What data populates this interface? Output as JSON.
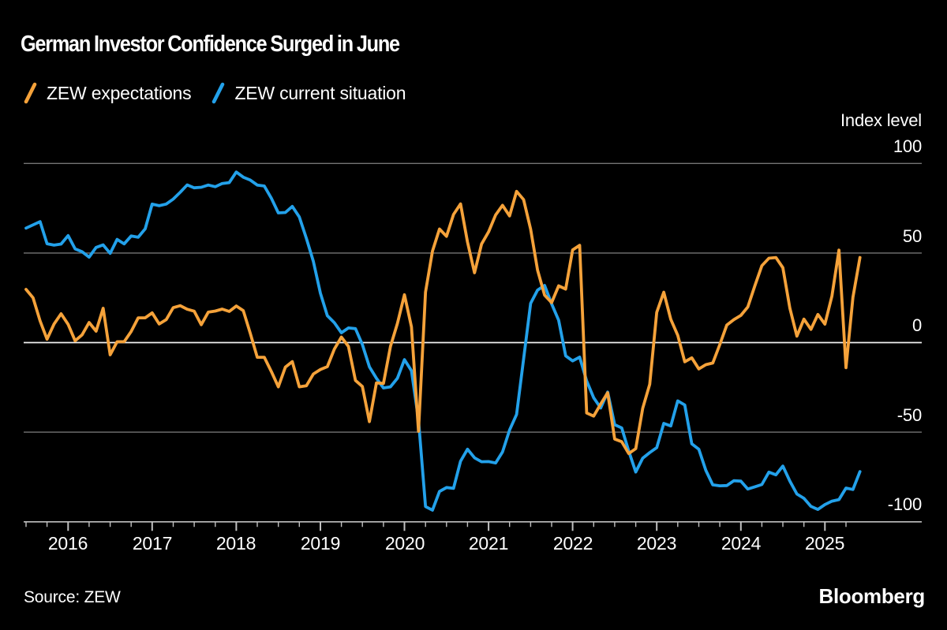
{
  "page": {
    "background": "#000000",
    "text_color": "#ffffff",
    "gridline_color": "#757575",
    "zero_line_color": "#f2f2f2",
    "axis_color": "#c0c0c0"
  },
  "header": {
    "title": "German Investor Confidence Surged in June"
  },
  "legend": {
    "items": [
      {
        "label": "ZEW expectations",
        "color": "#F5A23A"
      },
      {
        "label": "ZEW current situation",
        "color": "#23A1EA"
      }
    ]
  },
  "y_axis": {
    "unit_label": "Index level",
    "ticks": [
      "100",
      "50",
      "0",
      "-50",
      "-100"
    ]
  },
  "x_axis": {
    "years": [
      "2016",
      "2017",
      "2018",
      "2019",
      "2020",
      "2021",
      "2022",
      "2023",
      "2024",
      "2025"
    ]
  },
  "footer": {
    "source": "Source:  ZEW",
    "brand": "Bloomberg"
  },
  "chart_data": {
    "type": "line",
    "title": "German Investor Confidence Surged in June",
    "ylabel": "Index level",
    "ylim": [
      -100,
      100
    ],
    "y_gridlines": [
      100,
      50,
      0,
      -50,
      -100
    ],
    "grid": true,
    "legend_position": "top-left",
    "x_range": {
      "start": "2015-07",
      "end": "2025-06",
      "frequency": "monthly"
    },
    "x_tick_years": [
      2016,
      2017,
      2018,
      2019,
      2020,
      2021,
      2022,
      2023,
      2024,
      2025
    ],
    "series": [
      {
        "name": "ZEW expectations",
        "color": "#F5A23A",
        "values": [
          29.7,
          25.0,
          12.1,
          1.9,
          10.4,
          16.1,
          10.2,
          1.0,
          4.3,
          11.2,
          6.4,
          19.2,
          -6.8,
          0.5,
          0.5,
          6.2,
          13.8,
          13.8,
          16.6,
          10.4,
          12.8,
          19.5,
          20.6,
          18.6,
          17.5,
          10.0,
          17.0,
          17.6,
          18.7,
          17.4,
          20.4,
          17.8,
          5.1,
          -8.2,
          -8.2,
          -16.1,
          -24.7,
          -13.7,
          -10.6,
          -24.7,
          -24.1,
          -17.5,
          -15.0,
          -13.4,
          -3.6,
          3.1,
          -2.1,
          -21.1,
          -24.5,
          -44.1,
          -22.5,
          -22.8,
          -2.1,
          10.7,
          26.7,
          8.7,
          -49.5,
          28.2,
          51.0,
          63.4,
          59.3,
          71.5,
          77.4,
          56.1,
          39.0,
          55.0,
          61.8,
          71.2,
          76.6,
          70.7,
          84.4,
          79.8,
          63.3,
          40.4,
          26.5,
          22.3,
          31.7,
          29.9,
          51.7,
          54.3,
          -39.3,
          -41.0,
          -34.3,
          -28.0,
          -53.8,
          -55.3,
          -61.9,
          -59.2,
          -36.7,
          -23.3,
          16.9,
          28.1,
          13.0,
          4.1,
          -10.7,
          -8.5,
          -14.7,
          -12.3,
          -11.4,
          -1.1,
          9.8,
          12.8,
          15.2,
          19.9,
          31.7,
          42.9,
          47.1,
          47.5,
          41.8,
          19.2,
          3.6,
          13.1,
          7.4,
          15.7,
          10.3,
          26.0,
          51.6,
          -14.0,
          25.2,
          47.5
        ]
      },
      {
        "name": "ZEW current situation",
        "color": "#23A1EA",
        "values": [
          63.9,
          65.7,
          67.5,
          55.2,
          54.4,
          55.0,
          59.7,
          52.3,
          50.7,
          47.7,
          53.1,
          54.5,
          49.8,
          57.6,
          55.1,
          59.5,
          58.8,
          63.5,
          77.3,
          76.4,
          77.3,
          80.1,
          83.9,
          88.0,
          86.4,
          86.7,
          87.9,
          87.0,
          88.8,
          89.3,
          95.2,
          92.3,
          90.7,
          87.9,
          87.4,
          80.6,
          72.4,
          72.6,
          76.0,
          70.1,
          58.2,
          45.3,
          27.6,
          15.0,
          11.1,
          5.5,
          8.2,
          7.8,
          -1.1,
          -13.5,
          -19.9,
          -25.3,
          -24.7,
          -19.9,
          -9.5,
          -15.7,
          -43.1,
          -91.5,
          -93.5,
          -83.1,
          -80.9,
          -81.3,
          -66.2,
          -59.5,
          -64.3,
          -66.5,
          -66.4,
          -67.2,
          -61.0,
          -48.8,
          -40.1,
          -9.1,
          21.9,
          29.3,
          31.9,
          21.6,
          12.5,
          -7.4,
          -10.2,
          -8.1,
          -21.4,
          -30.8,
          -36.5,
          -27.6,
          -45.8,
          -47.6,
          -60.5,
          -72.2,
          -64.5,
          -61.4,
          -58.6,
          -45.1,
          -46.5,
          -32.5,
          -34.8,
          -56.5,
          -59.5,
          -71.3,
          -79.4,
          -79.9,
          -79.8,
          -77.1,
          -77.3,
          -81.7,
          -80.5,
          -79.2,
          -72.3,
          -73.8,
          -68.9,
          -77.3,
          -84.5,
          -86.9,
          -91.4,
          -93.1,
          -90.4,
          -88.5,
          -87.6,
          -81.2,
          -82.0,
          -72.0
        ]
      }
    ]
  }
}
